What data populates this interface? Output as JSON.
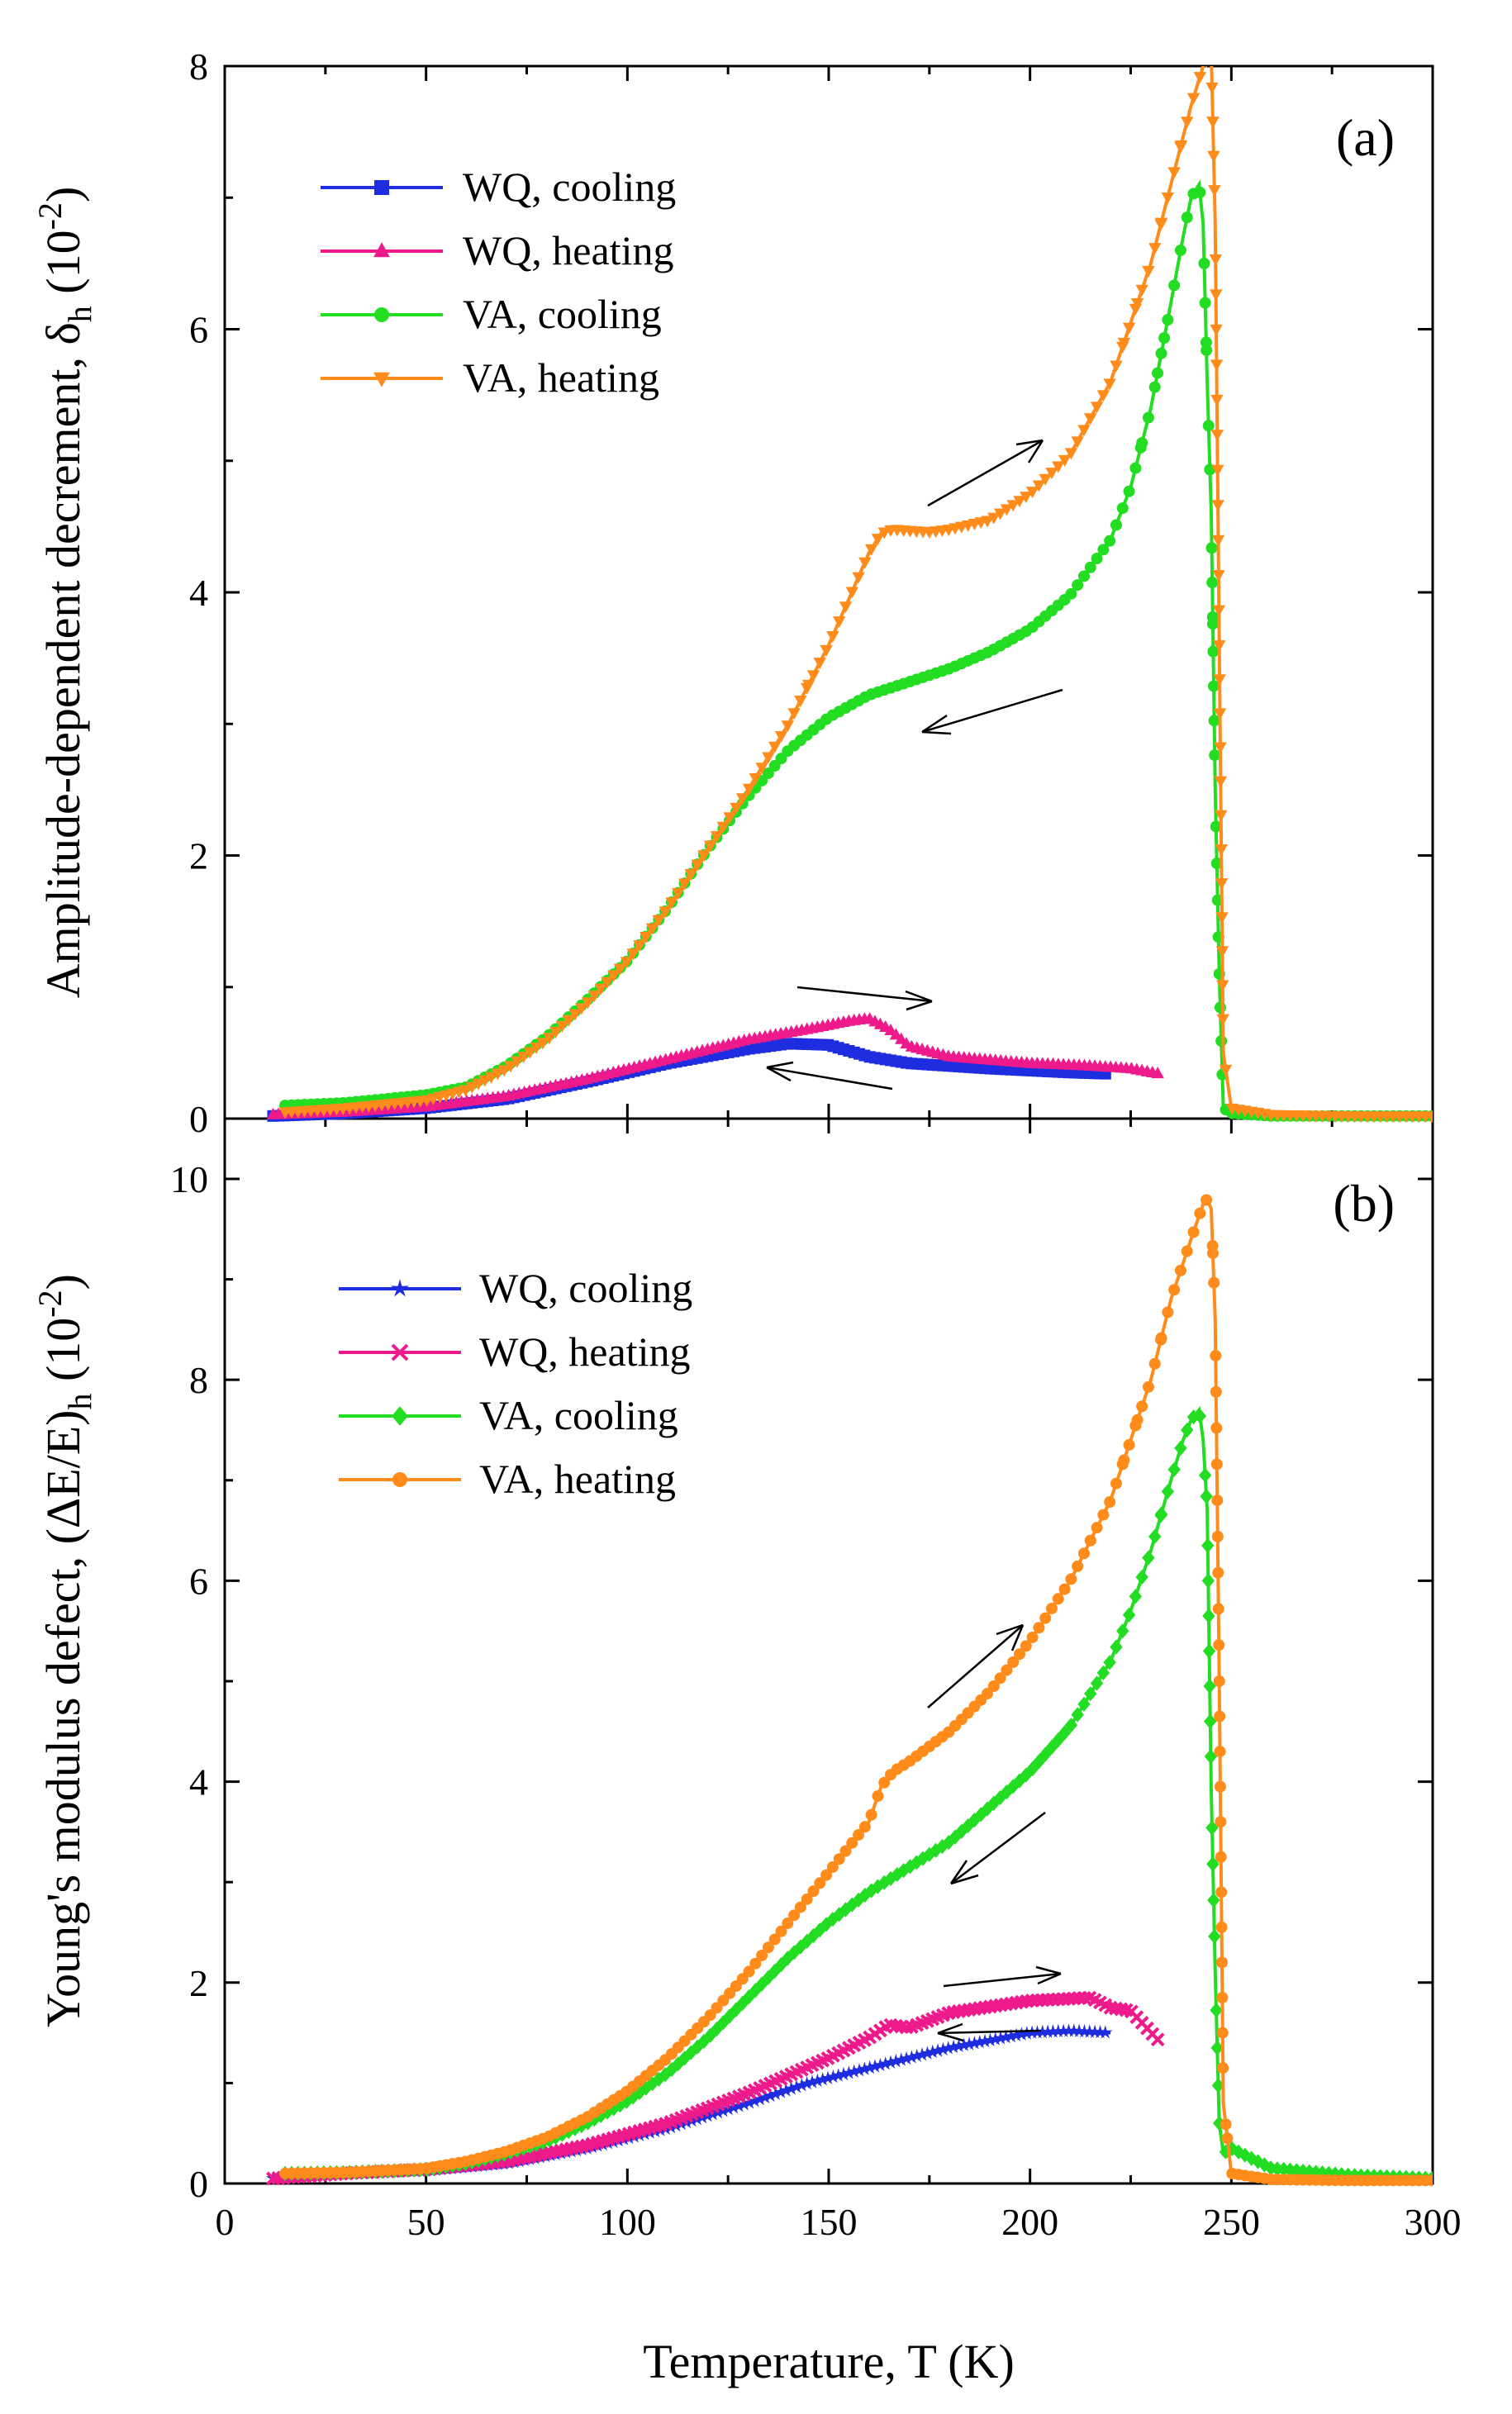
{
  "chart_data": [
    {
      "type": "line",
      "panel_label": "(a)",
      "ylabel_main": "Amplitude-dependent decrement, δ",
      "ylabel_sub": "h",
      "ylabel_unit_open": " (10",
      "ylabel_unit_exp": "-2",
      "ylabel_unit_close": ")",
      "ylim": [
        0,
        8
      ],
      "yticks": [
        "0",
        "2",
        "4",
        "6",
        "8"
      ],
      "xlim": [
        0,
        300
      ],
      "series": [
        {
          "name": "WQ, cooling",
          "color": "#1f2de0",
          "marker": "square",
          "x": [
            12,
            30,
            50,
            70,
            90,
            110,
            130,
            140,
            150,
            160,
            170,
            190,
            210,
            220
          ],
          "y": [
            0.02,
            0.04,
            0.08,
            0.15,
            0.28,
            0.42,
            0.53,
            0.57,
            0.56,
            0.47,
            0.42,
            0.38,
            0.35,
            0.34
          ]
        },
        {
          "name": "WQ, heating",
          "color": "#ee1a8b",
          "marker": "triangle",
          "x": [
            12,
            30,
            50,
            70,
            90,
            110,
            130,
            145,
            155,
            160,
            165,
            170,
            180,
            200,
            215,
            225,
            232
          ],
          "y": [
            0.03,
            0.05,
            0.09,
            0.17,
            0.3,
            0.45,
            0.6,
            0.68,
            0.74,
            0.76,
            0.68,
            0.55,
            0.47,
            0.42,
            0.4,
            0.38,
            0.34
          ]
        },
        {
          "name": "VA, cooling",
          "color": "#22dd22",
          "marker": "circle",
          "x": [
            15,
            30,
            50,
            60,
            70,
            80,
            90,
            100,
            110,
            120,
            130,
            140,
            150,
            160,
            170,
            180,
            190,
            200,
            210,
            220,
            225,
            230,
            235,
            238,
            240,
            242,
            243,
            244,
            245,
            246,
            247,
            248,
            250,
            260,
            280,
            300
          ],
          "y": [
            0.1,
            0.12,
            0.18,
            0.24,
            0.4,
            0.62,
            0.9,
            1.2,
            1.6,
            2.05,
            2.45,
            2.8,
            3.05,
            3.22,
            3.32,
            3.42,
            3.55,
            3.72,
            3.98,
            4.4,
            4.8,
            5.4,
            6.2,
            6.7,
            7.0,
            7.1,
            6.8,
            5.6,
            4.6,
            2.5,
            1.1,
            0.08,
            0.04,
            0.02,
            0.02,
            0.02
          ]
        },
        {
          "name": "VA, heating",
          "color": "#ff8c1a",
          "marker": "triangle-down",
          "x": [
            15,
            30,
            50,
            60,
            70,
            80,
            90,
            100,
            110,
            120,
            130,
            140,
            150,
            155,
            160,
            163,
            166,
            170,
            175,
            180,
            190,
            200,
            210,
            220,
            230,
            235,
            240,
            243,
            245,
            246,
            247,
            248,
            250,
            260,
            280,
            300
          ],
          "y": [
            0.05,
            0.08,
            0.14,
            0.22,
            0.38,
            0.6,
            0.88,
            1.2,
            1.6,
            2.05,
            2.5,
            3.0,
            3.6,
            3.95,
            4.3,
            4.45,
            4.48,
            4.47,
            4.46,
            4.48,
            4.55,
            4.75,
            5.05,
            5.6,
            6.5,
            7.1,
            7.7,
            8.0,
            8.1,
            6.8,
            3.6,
            0.5,
            0.08,
            0.03,
            0.02,
            0.02
          ]
        }
      ]
    },
    {
      "type": "line",
      "panel_label": "(b)",
      "ylabel_main": "Young's modulus defect, (ΔE/E)",
      "ylabel_sub": "h",
      "ylabel_unit_open": " (10",
      "ylabel_unit_exp": "-2",
      "ylabel_unit_close": ")",
      "ylim": [
        0,
        10.6
      ],
      "yticks": [
        "0",
        "2",
        "4",
        "6",
        "8",
        "10"
      ],
      "xlim": [
        0,
        300
      ],
      "xticks": [
        "0",
        "50",
        "100",
        "150",
        "200",
        "250",
        "300"
      ],
      "xlabel": "Temperature, T (K)",
      "series": [
        {
          "name": "WQ, cooling",
          "color": "#1f2de0",
          "marker": "star",
          "x": [
            12,
            30,
            50,
            70,
            90,
            110,
            130,
            145,
            160,
            180,
            200,
            210,
            220
          ],
          "y": [
            0.05,
            0.1,
            0.13,
            0.2,
            0.35,
            0.55,
            0.8,
            1.0,
            1.15,
            1.35,
            1.5,
            1.52,
            1.5
          ]
        },
        {
          "name": "WQ, heating",
          "color": "#ee1a8b",
          "marker": "x",
          "x": [
            12,
            30,
            50,
            70,
            90,
            110,
            130,
            150,
            160,
            165,
            170,
            180,
            200,
            215,
            220,
            225,
            232
          ],
          "y": [
            0.05,
            0.1,
            0.14,
            0.22,
            0.38,
            0.6,
            0.9,
            1.25,
            1.45,
            1.58,
            1.55,
            1.7,
            1.82,
            1.85,
            1.75,
            1.72,
            1.42
          ]
        },
        {
          "name": "VA, cooling",
          "color": "#22dd22",
          "marker": "diamond",
          "x": [
            15,
            30,
            50,
            60,
            70,
            80,
            90,
            100,
            110,
            120,
            130,
            140,
            150,
            160,
            170,
            180,
            190,
            200,
            210,
            220,
            225,
            230,
            235,
            238,
            240,
            242,
            243,
            244,
            245,
            246,
            247,
            248,
            250,
            260,
            280,
            300
          ],
          "y": [
            0.1,
            0.11,
            0.14,
            0.2,
            0.3,
            0.42,
            0.6,
            0.82,
            1.1,
            1.45,
            1.85,
            2.25,
            2.6,
            2.9,
            3.15,
            3.4,
            3.75,
            4.1,
            4.55,
            5.2,
            5.7,
            6.3,
            7.0,
            7.4,
            7.6,
            7.7,
            7.4,
            6.7,
            3.9,
            2.1,
            0.6,
            0.3,
            0.35,
            0.15,
            0.08,
            0.05
          ]
        },
        {
          "name": "VA, heating",
          "color": "#ff8c1a",
          "marker": "circle",
          "x": [
            15,
            30,
            50,
            60,
            70,
            80,
            90,
            100,
            110,
            120,
            130,
            140,
            150,
            160,
            163,
            166,
            170,
            180,
            190,
            200,
            210,
            220,
            230,
            235,
            240,
            243,
            244,
            245,
            246,
            247,
            248,
            250,
            260,
            280,
            300
          ],
          "y": [
            0.1,
            0.11,
            0.15,
            0.22,
            0.32,
            0.46,
            0.66,
            0.92,
            1.25,
            1.65,
            2.1,
            2.6,
            3.1,
            3.6,
            3.95,
            4.1,
            4.2,
            4.5,
            4.9,
            5.4,
            6.0,
            6.8,
            8.0,
            8.8,
            9.4,
            9.75,
            9.8,
            9.7,
            8.6,
            5.0,
            0.8,
            0.1,
            0.04,
            0.03,
            0.03
          ]
        }
      ]
    }
  ]
}
